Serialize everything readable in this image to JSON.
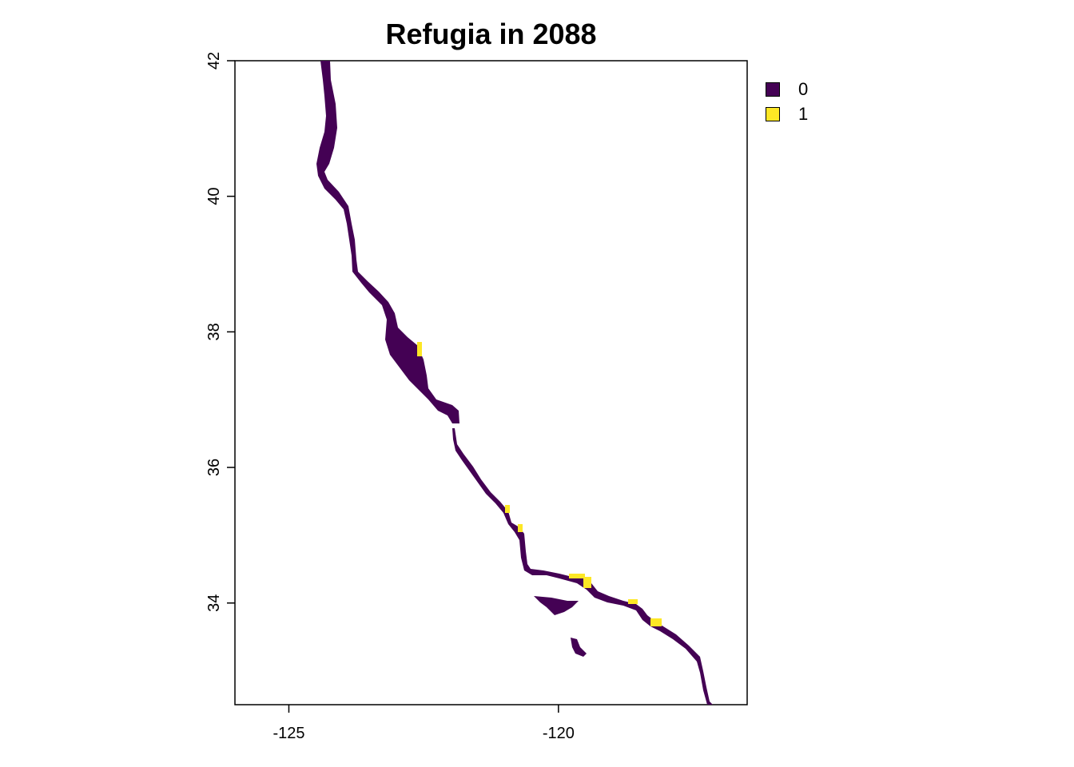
{
  "map": {
    "title": "Refugia in 2088",
    "x_ticks": [
      {
        "value": -125,
        "label": "-125"
      },
      {
        "value": -120,
        "label": "-120"
      }
    ],
    "y_ticks": [
      {
        "value": 34,
        "label": "34"
      },
      {
        "value": 36,
        "label": "36"
      },
      {
        "value": 38,
        "label": "38"
      },
      {
        "value": 40,
        "label": "40"
      },
      {
        "value": 42,
        "label": "42"
      }
    ],
    "lon_range": [
      -126.0,
      -116.5
    ],
    "lat_range": [
      32.5,
      42.0
    ],
    "legend": [
      {
        "value": 0,
        "label": "0",
        "color": "#440154"
      },
      {
        "value": 1,
        "label": "1",
        "color": "#FDE725"
      }
    ]
  }
}
